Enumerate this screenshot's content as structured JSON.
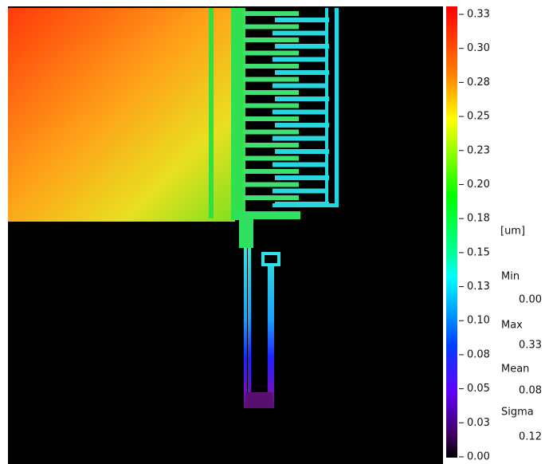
{
  "colorbar": {
    "unit": "[um]",
    "range": [
      0,
      0.325
    ],
    "ticks": [
      {
        "value": 0.325,
        "label": "0.33"
      },
      {
        "value": 0.3,
        "label": "0.30"
      },
      {
        "value": 0.275,
        "label": "0.28"
      },
      {
        "value": 0.25,
        "label": "0.25"
      },
      {
        "value": 0.225,
        "label": "0.23"
      },
      {
        "value": 0.2,
        "label": "0.20"
      },
      {
        "value": 0.175,
        "label": "0.18"
      },
      0.15,
      {
        "value": 0.125,
        "label": "0.13"
      },
      {
        "value": 0.1,
        "label": "0.10"
      },
      {
        "value": 0.075,
        "label": "0.08"
      },
      0.05,
      {
        "value": 0.025,
        "label": "0.03"
      },
      {
        "value": 0,
        "label": "0.00"
      }
    ]
  },
  "stats": [
    {
      "label": "Min",
      "value": "0.00"
    },
    {
      "label": "Max",
      "value": "0.33"
    },
    {
      "label": "Mean",
      "value": "0.08"
    },
    {
      "label": "Sigma",
      "value": "0.12"
    }
  ]
}
